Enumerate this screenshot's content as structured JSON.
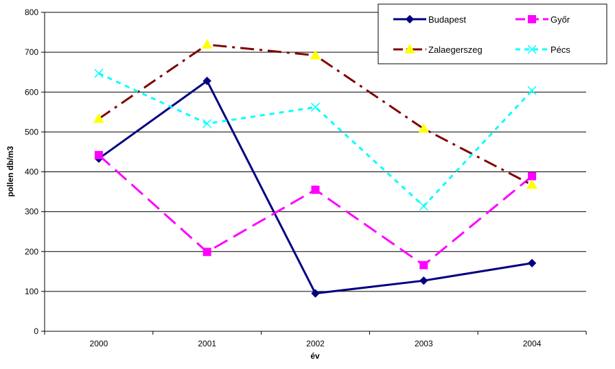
{
  "chart_data": {
    "type": "line",
    "title": "",
    "xlabel": "év",
    "ylabel": "pollen db/m3",
    "categories": [
      "2000",
      "2001",
      "2002",
      "2003",
      "2004"
    ],
    "ylim": [
      0,
      800
    ],
    "yticks": [
      0,
      100,
      200,
      300,
      400,
      500,
      600,
      700,
      800
    ],
    "grid": "horizontal",
    "legend_position": "top-right",
    "series": [
      {
        "name": "Budapest",
        "values": [
          433,
          628,
          95,
          127,
          171
        ],
        "color": "#000080",
        "line": "solid",
        "marker": "diamond"
      },
      {
        "name": "Győr",
        "values": [
          442,
          199,
          355,
          166,
          389
        ],
        "color": "#FF00FF",
        "line": "dashed",
        "marker": "square"
      },
      {
        "name": "Zalaegerszeg",
        "values": [
          533,
          719,
          692,
          508,
          367
        ],
        "color": "#800000",
        "line": "dashdot",
        "marker": "triangle",
        "marker_color": "#FFFF00"
      },
      {
        "name": "Pécs",
        "values": [
          647,
          521,
          562,
          314,
          604
        ],
        "color": "#00FFFF",
        "line": "dotted",
        "marker": "x"
      }
    ]
  }
}
